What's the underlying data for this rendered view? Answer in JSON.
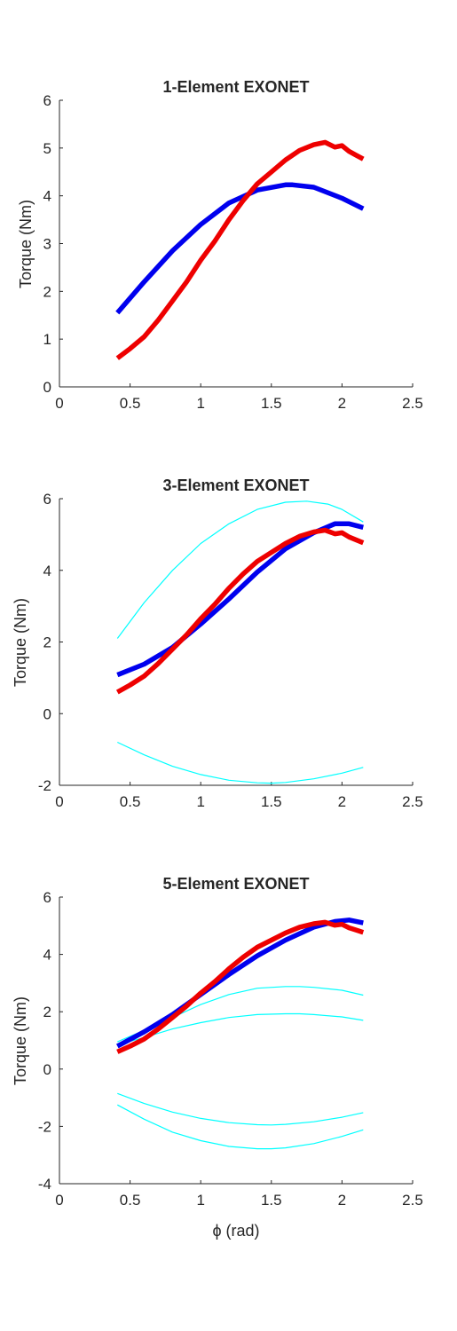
{
  "chart_data": [
    {
      "type": "line",
      "title": "1-Element EXONET",
      "xlabel": "",
      "ylabel": "Torque (Nm)",
      "xlim": [
        0,
        2.5
      ],
      "ylim": [
        0,
        6
      ],
      "xticks": [
        "0",
        "0.5",
        "1",
        "1.5",
        "2",
        "2.5"
      ],
      "yticks": [
        "0",
        "1",
        "2",
        "3",
        "4",
        "5",
        "6"
      ],
      "grid": false,
      "series": [
        {
          "color": "#0000ee",
          "width": "thick",
          "x": [
            0.41,
            0.6,
            0.8,
            1.0,
            1.2,
            1.4,
            1.6,
            1.65,
            1.8,
            2.0,
            2.15
          ],
          "y": [
            1.55,
            2.2,
            2.85,
            3.4,
            3.85,
            4.12,
            4.23,
            4.23,
            4.18,
            3.95,
            3.73
          ]
        },
        {
          "color": "#ee0000",
          "width": "thick",
          "x": [
            0.41,
            0.5,
            0.6,
            0.7,
            0.8,
            0.9,
            1.0,
            1.1,
            1.2,
            1.3,
            1.4,
            1.5,
            1.6,
            1.7,
            1.8,
            1.88,
            1.95,
            2.0,
            2.05,
            2.1,
            2.15
          ],
          "y": [
            0.6,
            0.8,
            1.05,
            1.4,
            1.8,
            2.2,
            2.65,
            3.05,
            3.5,
            3.9,
            4.25,
            4.5,
            4.75,
            4.95,
            5.07,
            5.12,
            5.02,
            5.05,
            4.93,
            4.85,
            4.77
          ]
        }
      ]
    },
    {
      "type": "line",
      "title": "3-Element EXONET",
      "xlabel": "",
      "ylabel": "Torque (Nm)",
      "xlim": [
        0,
        2.5
      ],
      "ylim": [
        -2,
        6
      ],
      "xticks": [
        "0",
        "0.5",
        "1",
        "1.5",
        "2",
        "2.5"
      ],
      "yticks": [
        "-2",
        "0",
        "2",
        "4",
        "6"
      ],
      "grid": false,
      "series": [
        {
          "color": "#00ffff",
          "width": "thin",
          "x": [
            0.41,
            0.6,
            0.8,
            1.0,
            1.2,
            1.4,
            1.6,
            1.75,
            1.9,
            2.0,
            2.15
          ],
          "y": [
            2.1,
            3.1,
            4.0,
            4.75,
            5.3,
            5.7,
            5.9,
            5.93,
            5.85,
            5.7,
            5.35
          ]
        },
        {
          "color": "#00ffff",
          "width": "thin",
          "x": [
            0.41,
            0.6,
            0.8,
            1.0,
            1.2,
            1.4,
            1.5,
            1.6,
            1.8,
            2.0,
            2.15
          ],
          "y": [
            -0.8,
            -1.15,
            -1.47,
            -1.7,
            -1.86,
            -1.93,
            -1.94,
            -1.92,
            -1.82,
            -1.66,
            -1.5
          ]
        },
        {
          "color": "#0000ee",
          "width": "thick",
          "x": [
            0.41,
            0.6,
            0.8,
            1.0,
            1.2,
            1.4,
            1.6,
            1.8,
            1.95,
            2.05,
            2.15
          ],
          "y": [
            1.08,
            1.38,
            1.85,
            2.5,
            3.2,
            3.95,
            4.6,
            5.05,
            5.3,
            5.3,
            5.2
          ]
        },
        {
          "color": "#ee0000",
          "width": "thick",
          "x": [
            0.41,
            0.5,
            0.6,
            0.7,
            0.8,
            0.9,
            1.0,
            1.1,
            1.2,
            1.3,
            1.4,
            1.5,
            1.6,
            1.7,
            1.8,
            1.88,
            1.95,
            2.0,
            2.05,
            2.1,
            2.15
          ],
          "y": [
            0.6,
            0.8,
            1.05,
            1.4,
            1.8,
            2.2,
            2.65,
            3.05,
            3.5,
            3.9,
            4.25,
            4.5,
            4.75,
            4.95,
            5.07,
            5.12,
            5.02,
            5.05,
            4.93,
            4.85,
            4.77
          ]
        }
      ]
    },
    {
      "type": "line",
      "title": "5-Element EXONET",
      "xlabel": "ϕ (rad)",
      "ylabel": "Torque (Nm)",
      "xlim": [
        0,
        2.5
      ],
      "ylim": [
        -4,
        6
      ],
      "xticks": [
        "0",
        "0.5",
        "1",
        "1.5",
        "2",
        "2.5"
      ],
      "yticks": [
        "-4",
        "-2",
        "0",
        "2",
        "4",
        "6"
      ],
      "grid": false,
      "series": [
        {
          "color": "#00ffff",
          "width": "thin",
          "x": [
            0.41,
            0.6,
            0.8,
            1.0,
            1.2,
            1.4,
            1.6,
            1.7,
            1.8,
            2.0,
            2.15
          ],
          "y": [
            0.95,
            1.35,
            1.8,
            2.25,
            2.6,
            2.82,
            2.88,
            2.88,
            2.85,
            2.75,
            2.58
          ]
        },
        {
          "color": "#00ffff",
          "width": "thin",
          "x": [
            0.41,
            0.6,
            0.8,
            1.0,
            1.2,
            1.4,
            1.6,
            1.7,
            1.8,
            2.0,
            2.15
          ],
          "y": [
            0.85,
            1.1,
            1.4,
            1.62,
            1.8,
            1.9,
            1.93,
            1.93,
            1.9,
            1.82,
            1.7
          ]
        },
        {
          "color": "#00ffff",
          "width": "thin",
          "x": [
            0.41,
            0.6,
            0.8,
            1.0,
            1.2,
            1.4,
            1.5,
            1.6,
            1.8,
            2.0,
            2.15
          ],
          "y": [
            -0.85,
            -1.2,
            -1.5,
            -1.72,
            -1.87,
            -1.94,
            -1.95,
            -1.93,
            -1.84,
            -1.68,
            -1.52
          ]
        },
        {
          "color": "#00ffff",
          "width": "thin",
          "x": [
            0.41,
            0.6,
            0.8,
            1.0,
            1.2,
            1.4,
            1.5,
            1.6,
            1.8,
            2.0,
            2.15
          ],
          "y": [
            -1.25,
            -1.75,
            -2.2,
            -2.5,
            -2.7,
            -2.78,
            -2.78,
            -2.75,
            -2.6,
            -2.35,
            -2.12
          ]
        },
        {
          "color": "#0000ee",
          "width": "thick",
          "x": [
            0.41,
            0.6,
            0.8,
            1.0,
            1.2,
            1.4,
            1.6,
            1.8,
            1.95,
            2.05,
            2.15
          ],
          "y": [
            0.8,
            1.3,
            1.9,
            2.6,
            3.3,
            3.95,
            4.5,
            4.95,
            5.15,
            5.2,
            5.1
          ]
        },
        {
          "color": "#ee0000",
          "width": "thick",
          "x": [
            0.41,
            0.5,
            0.6,
            0.7,
            0.8,
            0.9,
            1.0,
            1.1,
            1.2,
            1.3,
            1.4,
            1.5,
            1.6,
            1.7,
            1.8,
            1.88,
            1.95,
            2.0,
            2.05,
            2.1,
            2.15
          ],
          "y": [
            0.6,
            0.8,
            1.05,
            1.4,
            1.8,
            2.2,
            2.65,
            3.05,
            3.5,
            3.9,
            4.25,
            4.5,
            4.75,
            4.95,
            5.07,
            5.12,
            5.02,
            5.05,
            4.93,
            4.85,
            4.77
          ]
        }
      ]
    }
  ]
}
